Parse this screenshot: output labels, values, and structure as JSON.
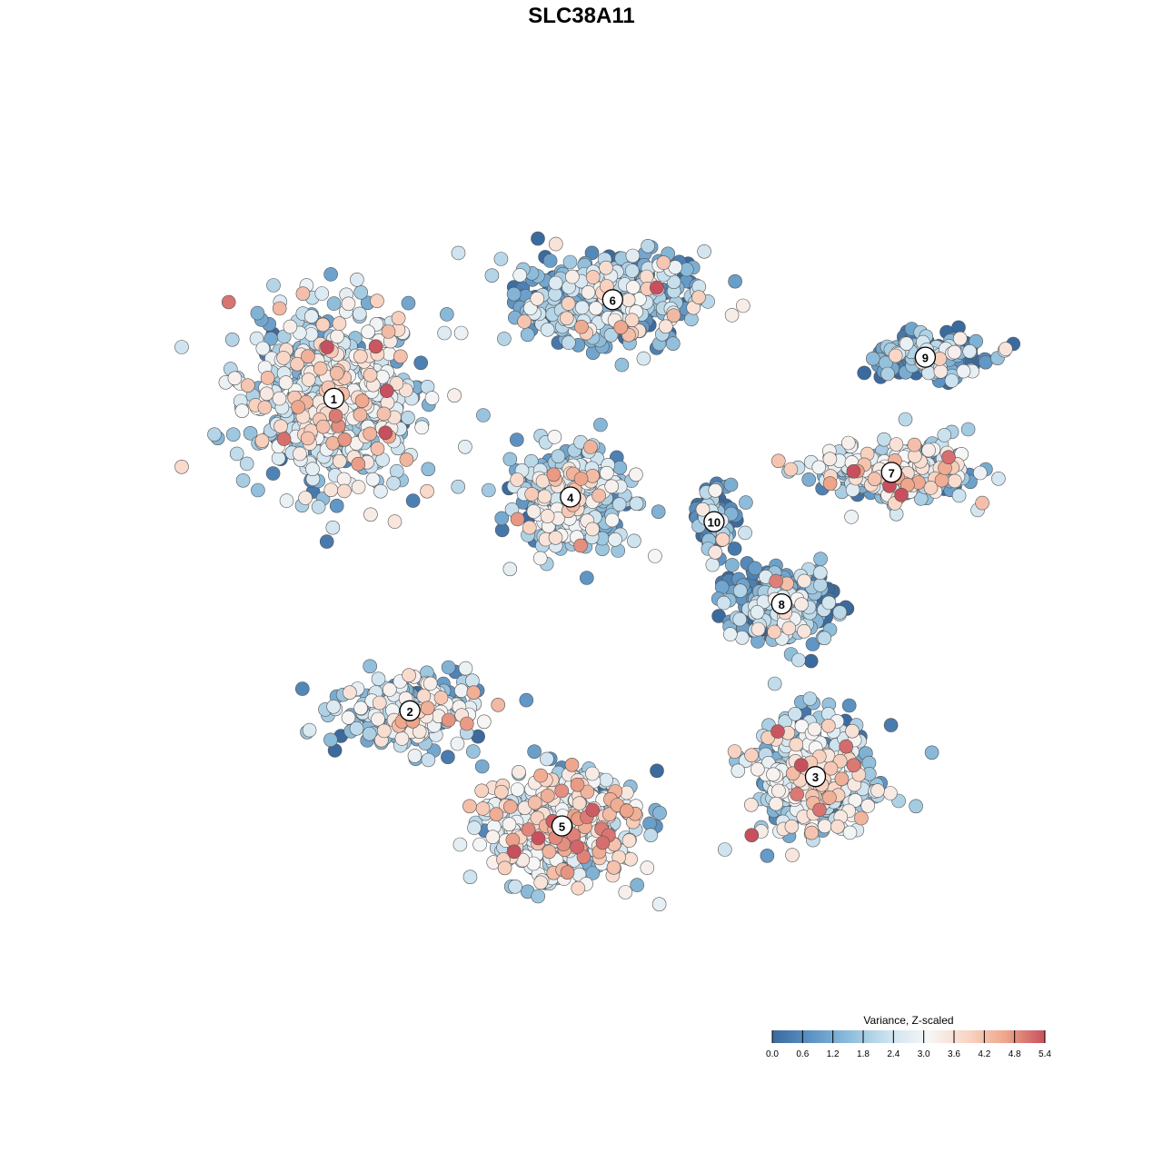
{
  "chart_data": {
    "type": "scatter",
    "title": "SLC38A11",
    "color_scale": {
      "title": "Variance, Z-scaled",
      "min": 0.0,
      "max": 5.4,
      "ticks": [
        "0.0",
        "0.6",
        "1.2",
        "1.8",
        "2.4",
        "3.0",
        "3.6",
        "4.2",
        "4.8",
        "5.4"
      ],
      "colors": [
        "#3b6a9e",
        "#5d94c4",
        "#8fbedb",
        "#cde3ef",
        "#f6f6f6",
        "#f9d6c5",
        "#eea58b",
        "#c8505e"
      ]
    },
    "clusters": [
      {
        "label": "1",
        "x": 0.18,
        "y": 0.72,
        "spread": [
          0.12,
          0.12
        ],
        "level": 2.2
      },
      {
        "label": "2",
        "x": 0.27,
        "y": 0.34,
        "spread": [
          0.09,
          0.05
        ],
        "level": 1.7
      },
      {
        "label": "3",
        "x": 0.75,
        "y": 0.26,
        "spread": [
          0.08,
          0.08
        ],
        "level": 2.1
      },
      {
        "label": "4",
        "x": 0.46,
        "y": 0.6,
        "spread": [
          0.07,
          0.07
        ],
        "level": 1.8
      },
      {
        "label": "5",
        "x": 0.45,
        "y": 0.2,
        "spread": [
          0.1,
          0.07
        ],
        "level": 2.4
      },
      {
        "label": "6",
        "x": 0.51,
        "y": 0.84,
        "spread": [
          0.12,
          0.06
        ],
        "level": 1.4
      },
      {
        "label": "7",
        "x": 0.84,
        "y": 0.63,
        "spread": [
          0.1,
          0.04
        ],
        "level": 2.0
      },
      {
        "label": "8",
        "x": 0.71,
        "y": 0.47,
        "spread": [
          0.07,
          0.05
        ],
        "level": 1.0
      },
      {
        "label": "9",
        "x": 0.88,
        "y": 0.77,
        "spread": [
          0.07,
          0.03
        ],
        "level": 0.8
      },
      {
        "label": "10",
        "x": 0.63,
        "y": 0.57,
        "spread": [
          0.03,
          0.04
        ],
        "level": 0.5
      }
    ]
  }
}
